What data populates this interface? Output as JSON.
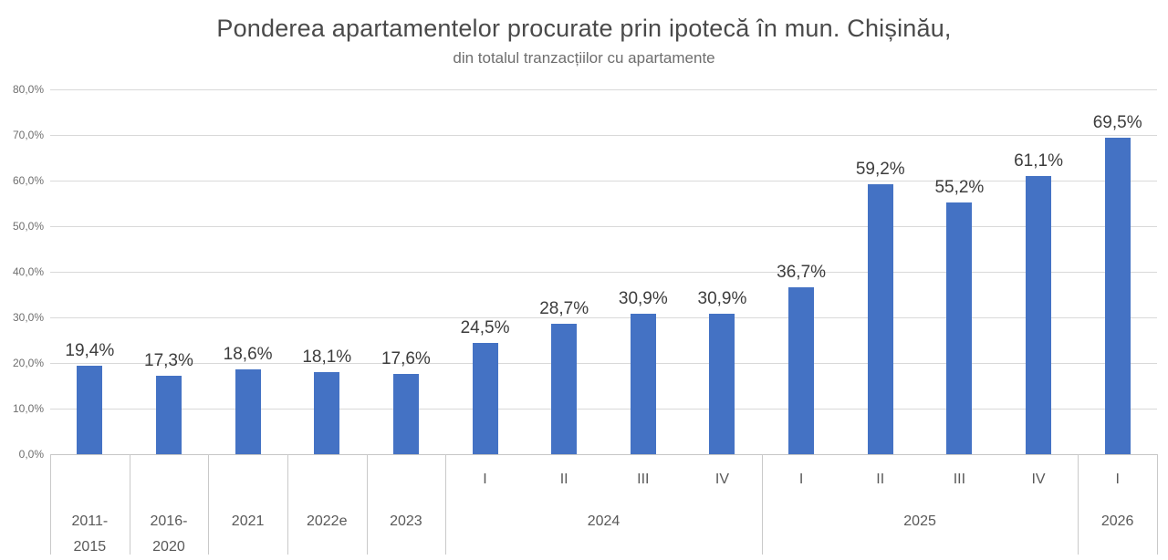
{
  "chart_data": {
    "type": "bar",
    "title": "Ponderea apartamentelor procurate prin ipotecă în mun. Chișinău,",
    "subtitle": "din totalul tranzacțiilor cu apartamente",
    "xlabel": "",
    "ylabel": "",
    "ylim": [
      0,
      80
    ],
    "ytick_step": 10,
    "grid": true,
    "legend": "none",
    "bar_color": "#4472C4",
    "yticks": [
      {
        "value": 0,
        "label": "0,0%"
      },
      {
        "value": 10,
        "label": "10,0%"
      },
      {
        "value": 20,
        "label": "20,0%"
      },
      {
        "value": 30,
        "label": "30,0%"
      },
      {
        "value": 40,
        "label": "40,0%"
      },
      {
        "value": 50,
        "label": "50,0%"
      },
      {
        "value": 60,
        "label": "60,0%"
      },
      {
        "value": 70,
        "label": "70,0%"
      },
      {
        "value": 80,
        "label": "80,0%"
      }
    ],
    "groups": [
      {
        "year": "2011-\n2015",
        "bars": [
          {
            "quarter": "",
            "value": 19.4,
            "label": "19,4%"
          }
        ]
      },
      {
        "year": "2016-\n2020",
        "bars": [
          {
            "quarter": "",
            "value": 17.3,
            "label": "17,3%"
          }
        ]
      },
      {
        "year": "2021",
        "bars": [
          {
            "quarter": "",
            "value": 18.6,
            "label": "18,6%"
          }
        ]
      },
      {
        "year": "2022e",
        "bars": [
          {
            "quarter": "",
            "value": 18.1,
            "label": "18,1%"
          }
        ]
      },
      {
        "year": "2023",
        "bars": [
          {
            "quarter": "",
            "value": 17.6,
            "label": "17,6%"
          }
        ]
      },
      {
        "year": "2024",
        "bars": [
          {
            "quarter": "I",
            "value": 24.5,
            "label": "24,5%"
          },
          {
            "quarter": "II",
            "value": 28.7,
            "label": "28,7%"
          },
          {
            "quarter": "III",
            "value": 30.9,
            "label": "30,9%"
          },
          {
            "quarter": "IV",
            "value": 30.9,
            "label": "30,9%"
          }
        ]
      },
      {
        "year": "2025",
        "bars": [
          {
            "quarter": "I",
            "value": 36.7,
            "label": "36,7%"
          },
          {
            "quarter": "II",
            "value": 59.2,
            "label": "59,2%"
          },
          {
            "quarter": "III",
            "value": 55.2,
            "label": "55,2%"
          },
          {
            "quarter": "IV",
            "value": 61.1,
            "label": "61,1%"
          }
        ]
      },
      {
        "year": "2026",
        "bars": [
          {
            "quarter": "I",
            "value": 69.5,
            "label": "69,5%"
          }
        ]
      }
    ]
  }
}
